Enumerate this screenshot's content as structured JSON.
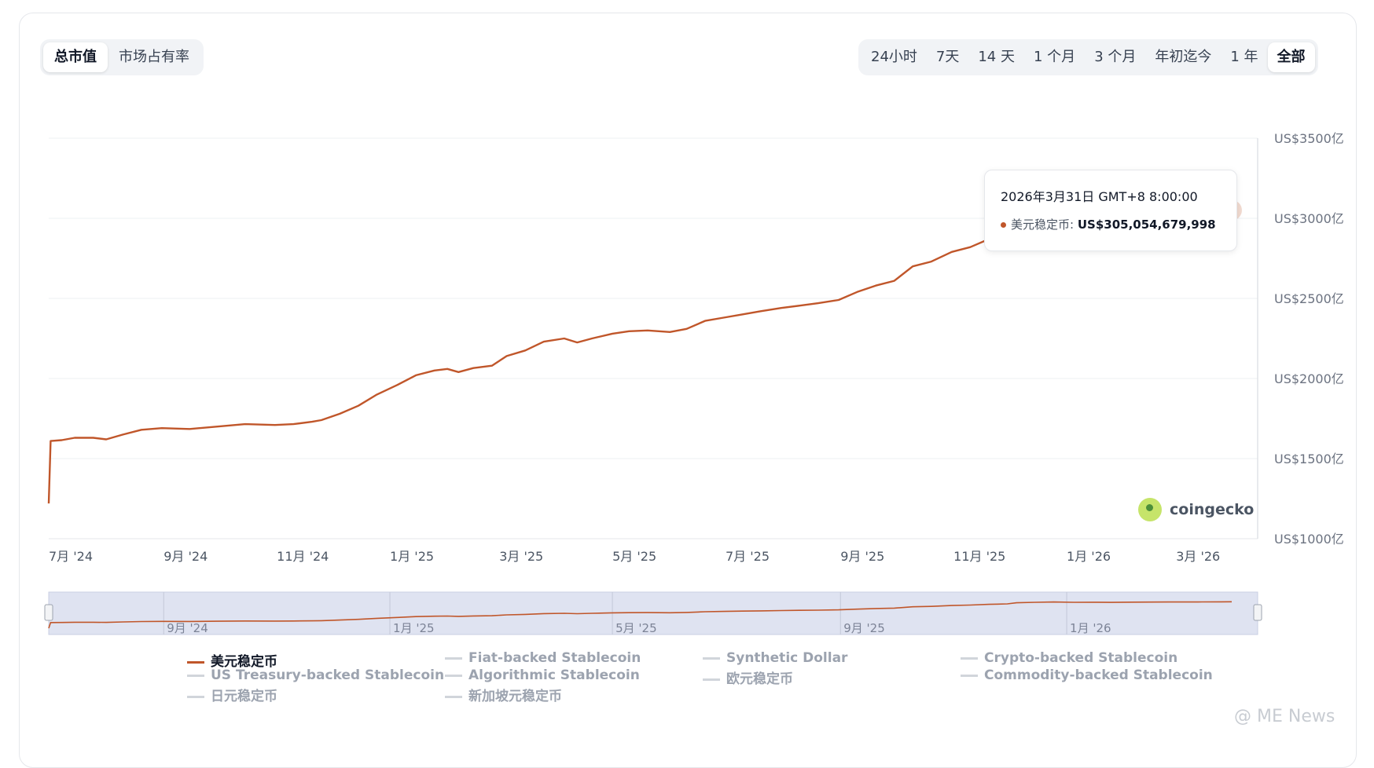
{
  "tabs_left": [
    {
      "label": "总市值",
      "active": true
    },
    {
      "label": "市场占有率",
      "active": false
    }
  ],
  "range_tabs": [
    {
      "label": "24小时",
      "active": false
    },
    {
      "label": "7天",
      "active": false
    },
    {
      "label": "14 天",
      "active": false
    },
    {
      "label": "1 个月",
      "active": false
    },
    {
      "label": "3 个月",
      "active": false
    },
    {
      "label": "年初迄今",
      "active": false
    },
    {
      "label": "1 年",
      "active": false
    },
    {
      "label": "全部",
      "active": true
    }
  ],
  "tooltip": {
    "date": "2026年3月31日 GMT+8 8:00:00",
    "series_label": "美元稳定币:",
    "value": "US$305,054,679,998"
  },
  "brand": {
    "logo_text": "coingecko",
    "accent": "#c0562a"
  },
  "watermark": "@ ME News",
  "legend": [
    {
      "label": "美元稳定币",
      "active": true
    },
    {
      "label": "Fiat-backed Stablecoin",
      "active": false
    },
    {
      "label": "Synthetic Dollar",
      "active": false
    },
    {
      "label": "Crypto-backed Stablecoin",
      "active": false
    },
    {
      "label": "US Treasury-backed Stablecoin",
      "active": false
    },
    {
      "label": "Algorithmic Stablecoin",
      "active": false
    },
    {
      "label": "欧元稳定币",
      "active": false
    },
    {
      "label": "Commodity-backed Stablecoin",
      "active": false
    },
    {
      "label": "日元稳定币",
      "active": false
    },
    {
      "label": "新加坡元稳定币",
      "active": false
    }
  ],
  "chart_data": {
    "type": "line",
    "y_unit": "US$ 亿",
    "ylim": [
      1000,
      3500
    ],
    "y_ticks": [
      1000,
      1500,
      2000,
      2500,
      3000,
      3500
    ],
    "y_tick_labels": [
      "US$1000亿",
      "US$1500亿",
      "US$2000亿",
      "US$2500亿",
      "US$3000亿",
      "US$3500亿"
    ],
    "xlim": [
      "2024-07-01",
      "2026-04-14"
    ],
    "x_ticks": [
      "2024-07-01",
      "2024-09-01",
      "2024-11-01",
      "2025-01-01",
      "2025-03-01",
      "2025-05-01",
      "2025-07-01",
      "2025-09-01",
      "2025-11-01",
      "2026-01-01",
      "2026-03-01"
    ],
    "x_tick_labels": [
      "7月 '24",
      "9月 '24",
      "11月 '24",
      "1月 '25",
      "3月 '25",
      "5月 '25",
      "7月 '25",
      "9月 '25",
      "11月 '25",
      "1月 '26",
      "3月 '26"
    ],
    "navigator_tick_labels": [
      "9月 '24",
      "1月 '25",
      "5月 '25",
      "9月 '25",
      "1月 '26"
    ],
    "navigator_ticks": [
      "2024-09-01",
      "2025-01-01",
      "2025-05-01",
      "2025-09-01",
      "2026-01-01"
    ],
    "grid": true,
    "series": [
      {
        "name": "美元稳定币",
        "color": "#c0562a",
        "points": [
          [
            "2024-07-01",
            1220
          ],
          [
            "2024-07-02",
            1610
          ],
          [
            "2024-07-08",
            1615
          ],
          [
            "2024-07-15",
            1630
          ],
          [
            "2024-07-25",
            1630
          ],
          [
            "2024-08-01",
            1620
          ],
          [
            "2024-08-10",
            1650
          ],
          [
            "2024-08-20",
            1680
          ],
          [
            "2024-08-31",
            1690
          ],
          [
            "2024-09-15",
            1685
          ],
          [
            "2024-09-30",
            1700
          ],
          [
            "2024-10-15",
            1715
          ],
          [
            "2024-10-31",
            1710
          ],
          [
            "2024-11-10",
            1715
          ],
          [
            "2024-11-20",
            1730
          ],
          [
            "2024-11-25",
            1740
          ],
          [
            "2024-12-05",
            1780
          ],
          [
            "2024-12-15",
            1830
          ],
          [
            "2024-12-25",
            1900
          ],
          [
            "2025-01-05",
            1960
          ],
          [
            "2025-01-15",
            2020
          ],
          [
            "2025-01-25",
            2050
          ],
          [
            "2025-02-01",
            2060
          ],
          [
            "2025-02-07",
            2040
          ],
          [
            "2025-02-15",
            2065
          ],
          [
            "2025-02-25",
            2080
          ],
          [
            "2025-03-05",
            2140
          ],
          [
            "2025-03-15",
            2175
          ],
          [
            "2025-03-25",
            2230
          ],
          [
            "2025-04-05",
            2250
          ],
          [
            "2025-04-12",
            2225
          ],
          [
            "2025-04-20",
            2250
          ],
          [
            "2025-05-01",
            2280
          ],
          [
            "2025-05-10",
            2295
          ],
          [
            "2025-05-20",
            2300
          ],
          [
            "2025-06-01",
            2290
          ],
          [
            "2025-06-10",
            2310
          ],
          [
            "2025-06-20",
            2360
          ],
          [
            "2025-06-30",
            2380
          ],
          [
            "2025-07-10",
            2400
          ],
          [
            "2025-07-20",
            2420
          ],
          [
            "2025-07-31",
            2440
          ],
          [
            "2025-08-10",
            2455
          ],
          [
            "2025-08-20",
            2470
          ],
          [
            "2025-08-31",
            2490
          ],
          [
            "2025-09-10",
            2540
          ],
          [
            "2025-09-20",
            2580
          ],
          [
            "2025-09-30",
            2610
          ],
          [
            "2025-10-10",
            2700
          ],
          [
            "2025-10-20",
            2730
          ],
          [
            "2025-10-31",
            2790
          ],
          [
            "2025-11-10",
            2820
          ],
          [
            "2025-11-20",
            2870
          ],
          [
            "2025-11-30",
            2900
          ],
          [
            "2025-12-05",
            2980
          ],
          [
            "2025-12-15",
            3010
          ],
          [
            "2025-12-25",
            3035
          ],
          [
            "2026-01-05",
            3010
          ],
          [
            "2026-01-15",
            3015
          ],
          [
            "2026-01-25",
            3005
          ],
          [
            "2026-02-05",
            3020
          ],
          [
            "2026-02-15",
            3025
          ],
          [
            "2026-02-25",
            3030
          ],
          [
            "2026-03-05",
            3035
          ],
          [
            "2026-03-15",
            3040
          ],
          [
            "2026-03-25",
            3045
          ],
          [
            "2026-03-31",
            3050.5
          ]
        ]
      }
    ],
    "highlight_point": [
      "2026-03-31",
      3050.5
    ]
  }
}
